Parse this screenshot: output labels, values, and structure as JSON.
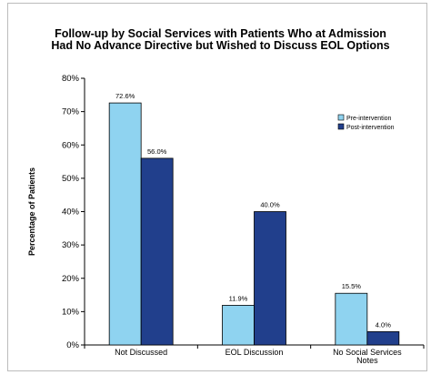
{
  "chart_data": {
    "type": "bar",
    "title": [
      "Follow-up by Social Services with Patients Who at Admission",
      "Had No Advance Directive but Wished to Discuss EOL Options"
    ],
    "xlabel": "",
    "ylabel": "Percentage of Patients",
    "categories": [
      [
        "Not Discussed"
      ],
      [
        "EOL Discussion"
      ],
      [
        "No Social Services",
        "Notes"
      ]
    ],
    "series": [
      {
        "name": "Pre-intervention",
        "color": "#8fd3f0",
        "values": [
          72.6,
          11.9,
          15.5
        ],
        "labels": [
          "72.6%",
          "11.9%",
          "15.5%"
        ]
      },
      {
        "name": "Post-intervention",
        "color": "#213f8c",
        "values": [
          56.0,
          40.0,
          4.0
        ],
        "labels": [
          "56.0%",
          "40.0%",
          "4.0%"
        ]
      }
    ],
    "ylim": [
      0,
      80
    ],
    "yticks": [
      {
        "value": 0,
        "label": "0%"
      },
      {
        "value": 10,
        "label": "10%"
      },
      {
        "value": 20,
        "label": "20%"
      },
      {
        "value": 30,
        "label": "30%"
      },
      {
        "value": 40,
        "label": "40%"
      },
      {
        "value": 50,
        "label": "50%"
      },
      {
        "value": 60,
        "label": "60%"
      },
      {
        "value": 70,
        "label": "70%"
      },
      {
        "value": 80,
        "label": "80%"
      }
    ],
    "grid": false,
    "legend_position": "right"
  }
}
